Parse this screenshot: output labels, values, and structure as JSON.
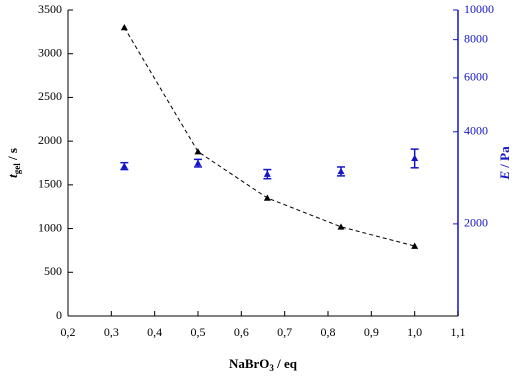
{
  "chart_data": {
    "type": "line",
    "x_label": {
      "main": "NaBrO",
      "sub": "3",
      "rest": " / eq"
    },
    "y_label": {
      "main": "t",
      "sub": "gel",
      "rest": " / s"
    },
    "y2_label": {
      "main": "E",
      "rest": " / Pa"
    },
    "xlim": [
      0.2,
      1.1
    ],
    "xticks": [
      {
        "value": 0.2,
        "label": "0,2"
      },
      {
        "value": 0.3,
        "label": "0,3"
      },
      {
        "value": 0.4,
        "label": "0,4"
      },
      {
        "value": 0.5,
        "label": "0,5"
      },
      {
        "value": 0.6,
        "label": "0,6"
      },
      {
        "value": 0.7,
        "label": "0,7"
      },
      {
        "value": 0.8,
        "label": "0,8"
      },
      {
        "value": 0.9,
        "label": "0,9"
      },
      {
        "value": 1.0,
        "label": "1,0"
      },
      {
        "value": 1.1,
        "label": "1,1"
      }
    ],
    "ylim": [
      0,
      3500
    ],
    "yticks": [
      0,
      500,
      1000,
      1500,
      2000,
      2500,
      3000,
      3500
    ],
    "y2lim": [
      1000,
      10000
    ],
    "y2ticks": [
      2000,
      4000,
      6000,
      8000,
      10000
    ],
    "y2_log": true,
    "series": [
      {
        "color": "#000000",
        "line": "dashed",
        "marker": "triangle",
        "x": [
          0.33,
          0.5,
          0.66,
          0.83,
          1.0
        ],
        "values": [
          3300,
          1880,
          1350,
          1020,
          800
        ]
      },
      {
        "color": "#1515c8",
        "axis": "y2",
        "marker": "triangle",
        "x": [
          0.33,
          0.5,
          0.66,
          0.83,
          1.0
        ],
        "values": [
          3090,
          3160,
          2910,
          2970,
          3280
        ],
        "errors": [
          80,
          90,
          100,
          100,
          230
        ]
      }
    ]
  }
}
